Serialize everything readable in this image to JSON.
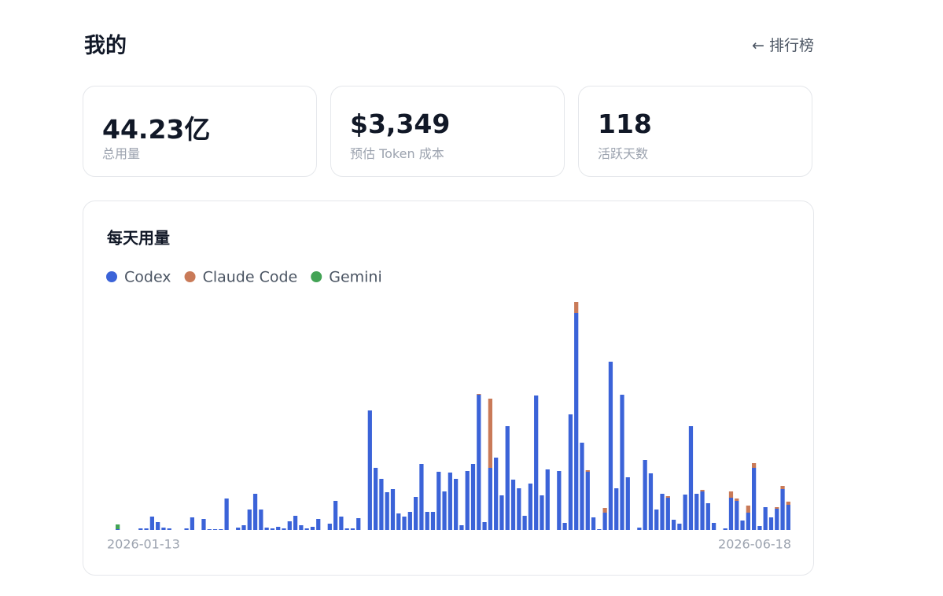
{
  "header": {
    "title": "我的",
    "link": "← 排行榜"
  },
  "stats": [
    {
      "value": "44.23亿",
      "label": "总用量"
    },
    {
      "value": "$3,349",
      "label": "预估 Token 成本"
    },
    {
      "value": "118",
      "label": "活跃天数"
    }
  ],
  "chart_data": {
    "type": "bar",
    "stacked": true,
    "title": "每天用量",
    "categories": [
      "2026-01-13",
      null,
      null,
      null,
      null,
      null,
      null,
      null,
      null,
      null,
      null,
      null,
      null,
      null,
      null,
      null,
      null,
      null,
      null,
      null,
      null,
      null,
      null,
      null,
      null,
      null,
      null,
      null,
      null,
      null,
      null,
      null,
      null,
      null,
      null,
      null,
      null,
      null,
      null,
      null,
      null,
      null,
      null,
      null,
      null,
      null,
      null,
      null,
      null,
      null,
      null,
      null,
      null,
      null,
      null,
      null,
      null,
      null,
      null,
      null,
      null,
      null,
      null,
      null,
      null,
      null,
      null,
      null,
      null,
      null,
      null,
      null,
      null,
      null,
      null,
      null,
      null,
      null,
      null,
      null,
      null,
      null,
      null,
      null,
      null,
      null,
      null,
      null,
      null,
      null,
      null,
      null,
      null,
      null,
      null,
      null,
      null,
      null,
      null,
      null,
      null,
      null,
      null,
      null,
      null,
      null,
      null,
      null,
      null,
      null,
      null,
      null,
      null,
      null,
      null,
      null,
      null,
      "2026-06-18"
    ],
    "series": [
      {
        "name": "Codex",
        "color": "#3b63d8",
        "values": [
          1,
          0,
          0,
          0,
          2,
          2,
          17,
          10,
          3,
          2,
          0,
          0,
          2,
          16,
          0,
          14,
          1,
          1,
          1,
          40,
          0,
          3,
          6,
          26,
          46,
          26,
          3,
          2,
          4,
          2,
          11,
          18,
          6,
          2,
          4,
          14,
          0,
          8,
          37,
          17,
          2,
          2,
          15,
          0,
          152,
          79,
          65,
          48,
          52,
          21,
          17,
          23,
          42,
          84,
          23,
          23,
          74,
          49,
          73,
          65,
          6,
          75,
          84,
          172,
          10,
          79,
          92,
          44,
          132,
          64,
          53,
          18,
          59,
          171,
          44,
          77,
          0,
          75,
          9,
          147,
          276,
          111,
          74,
          16,
          1,
          22,
          214,
          53,
          172,
          67,
          0,
          3,
          89,
          72,
          26,
          46,
          41,
          13,
          8,
          45,
          132,
          46,
          49,
          34,
          9,
          0,
          2,
          41,
          37,
          12,
          22,
          79,
          5,
          29,
          16,
          27,
          52,
          32
        ]
      },
      {
        "name": "Claude Code",
        "color": "#c97a58",
        "values": [
          0,
          0,
          0,
          0,
          0,
          0,
          0,
          0,
          0,
          0,
          0,
          0,
          0,
          0,
          0,
          0,
          0,
          0,
          0,
          0,
          0,
          0,
          0,
          0,
          0,
          0,
          0,
          0,
          0,
          0,
          0,
          0,
          0,
          0,
          0,
          0,
          0,
          0,
          0,
          0,
          0,
          0,
          0,
          0,
          0,
          0,
          0,
          0,
          0,
          0,
          0,
          0,
          0,
          0,
          0,
          0,
          0,
          0,
          0,
          0,
          0,
          0,
          0,
          1,
          0,
          88,
          0,
          0,
          0,
          0,
          0,
          0,
          0,
          0,
          0,
          0,
          0,
          0,
          0,
          0,
          14,
          0,
          2,
          0,
          0,
          6,
          0,
          0,
          0,
          0,
          0,
          0,
          0,
          0,
          0,
          0,
          2,
          0,
          0,
          0,
          0,
          0,
          2,
          0,
          0,
          0,
          0,
          8,
          3,
          0,
          9,
          6,
          0,
          0,
          0,
          2,
          4,
          4
        ]
      },
      {
        "name": "Gemini",
        "color": "#43a355",
        "values": [
          6,
          0,
          0,
          0,
          0,
          0,
          0,
          0,
          0,
          0,
          0,
          0,
          0,
          0,
          0,
          0,
          0,
          0,
          0,
          0,
          0,
          0,
          0,
          0,
          0,
          0,
          0,
          0,
          0,
          0,
          0,
          0,
          0,
          0,
          0,
          0,
          0,
          0,
          0,
          0,
          0,
          0,
          0,
          0,
          0,
          0,
          0,
          0,
          0,
          0,
          0,
          0,
          0,
          0,
          0,
          0,
          0,
          0,
          0,
          0,
          0,
          0,
          0,
          0,
          0,
          0,
          0,
          0,
          0,
          0,
          0,
          0,
          0,
          0,
          0,
          0,
          0,
          0,
          0,
          0,
          0,
          0,
          0,
          0,
          0,
          0,
          0,
          0,
          0,
          0,
          0,
          0,
          0,
          0,
          0,
          0,
          0,
          0,
          0,
          0,
          0,
          0,
          0,
          0,
          0,
          0,
          0,
          0,
          0,
          0,
          0,
          0,
          0,
          0,
          0,
          0,
          0,
          0
        ]
      }
    ]
  }
}
